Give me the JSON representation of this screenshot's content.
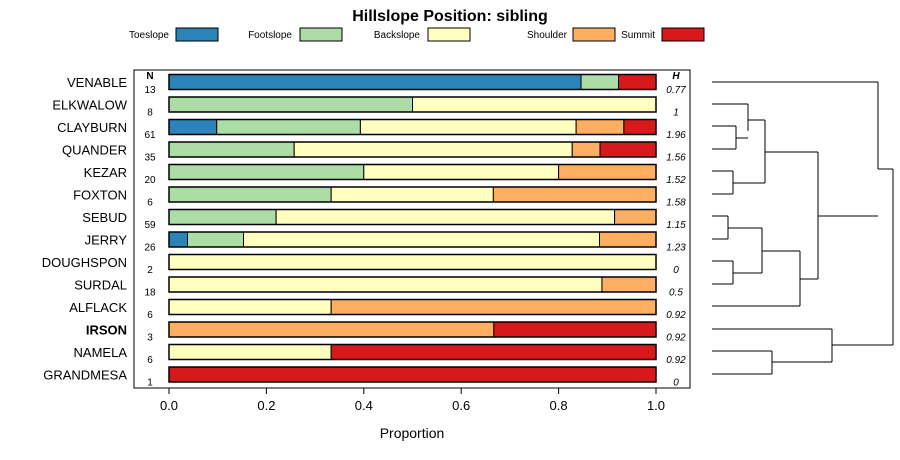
{
  "chart_data": {
    "type": "bar",
    "orientation": "horizontal",
    "stacked": true,
    "title": "Hillslope Position: sibling",
    "xlabel": "Proportion",
    "xlim": [
      0,
      1
    ],
    "xticks": [
      "0.0",
      "0.2",
      "0.4",
      "0.6",
      "0.8",
      "1.0"
    ],
    "n_header": "N",
    "h_header": "H",
    "legend_position": "top",
    "legend": [
      {
        "name": "Toeslope",
        "color": "#2b83ba"
      },
      {
        "name": "Footslope",
        "color": "#abdda4"
      },
      {
        "name": "Backslope",
        "color": "#ffffbf"
      },
      {
        "name": "Shoulder",
        "color": "#fdae61"
      },
      {
        "name": "Summit",
        "color": "#d7191c"
      }
    ],
    "rows": [
      {
        "label": "VENABLE",
        "n": "13",
        "h": "0.77",
        "bold": false,
        "values": [
          0.846,
          0.077,
          0,
          0,
          0.077
        ]
      },
      {
        "label": "ELKWALOW",
        "n": "8",
        "h": "1",
        "bold": false,
        "values": [
          0,
          0.5,
          0.5,
          0,
          0
        ]
      },
      {
        "label": "CLAYBURN",
        "n": "61",
        "h": "1.96",
        "bold": false,
        "values": [
          0.098,
          0.295,
          0.443,
          0.098,
          0.066
        ]
      },
      {
        "label": "QUANDER",
        "n": "35",
        "h": "1.56",
        "bold": false,
        "values": [
          0,
          0.257,
          0.571,
          0.057,
          0.115
        ]
      },
      {
        "label": "KEZAR",
        "n": "20",
        "h": "1.52",
        "bold": false,
        "values": [
          0,
          0.4,
          0.4,
          0.2,
          0
        ]
      },
      {
        "label": "FOXTON",
        "n": "6",
        "h": "1.58",
        "bold": false,
        "values": [
          0,
          0.333,
          0.333,
          0.334,
          0
        ]
      },
      {
        "label": "SEBUD",
        "n": "59",
        "h": "1.15",
        "bold": false,
        "values": [
          0,
          0.22,
          0.695,
          0.085,
          0
        ]
      },
      {
        "label": "JERRY",
        "n": "26",
        "h": "1.23",
        "bold": false,
        "values": [
          0.038,
          0.115,
          0.731,
          0.116,
          0
        ]
      },
      {
        "label": "DOUGHSPON",
        "n": "2",
        "h": "0",
        "bold": false,
        "values": [
          0,
          0,
          1,
          0,
          0
        ]
      },
      {
        "label": "SURDAL",
        "n": "18",
        "h": "0.5",
        "bold": false,
        "values": [
          0,
          0,
          0.889,
          0.111,
          0
        ]
      },
      {
        "label": "ALFLACK",
        "n": "6",
        "h": "0.92",
        "bold": false,
        "values": [
          0,
          0,
          0.333,
          0.667,
          0
        ]
      },
      {
        "label": "IRSON",
        "n": "3",
        "h": "0.92",
        "bold": true,
        "values": [
          0,
          0,
          0,
          0.667,
          0.333
        ]
      },
      {
        "label": "NAMELA",
        "n": "6",
        "h": "0.92",
        "bold": false,
        "values": [
          0,
          0,
          0.333,
          0,
          0.667
        ]
      },
      {
        "label": "GRANDMESA",
        "n": "1",
        "h": "0",
        "bold": false,
        "values": [
          0,
          0,
          0,
          0,
          1
        ]
      }
    ],
    "dendrogram": "hierarchical clustering tree grouping the soil series"
  }
}
